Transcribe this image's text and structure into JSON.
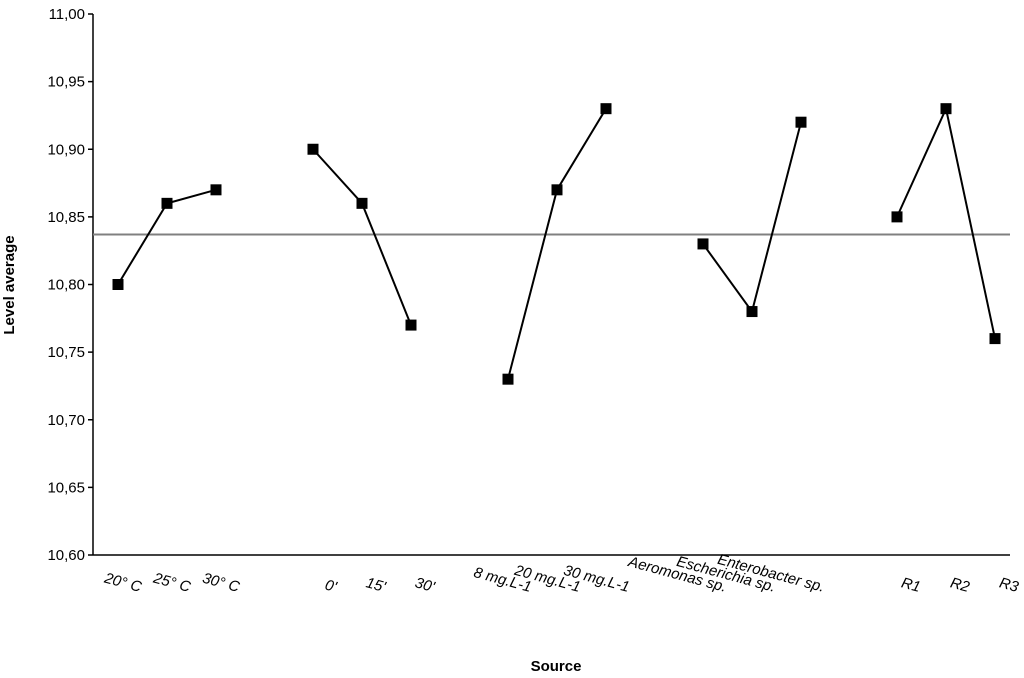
{
  "chart_data": {
    "type": "line",
    "title": "",
    "xlabel": "Source",
    "ylabel": "Level average",
    "ylim": [
      10.6,
      11.0
    ],
    "y_ticks": [
      "10,60",
      "10,65",
      "10,70",
      "10,75",
      "10,80",
      "10,85",
      "10,90",
      "10,95",
      "11,00"
    ],
    "reference_line": 10.837,
    "grid": false,
    "legend": "none",
    "colors": {
      "line": "#000000",
      "marker": "#000000",
      "reference": "#808080"
    },
    "groups": [
      {
        "categories": [
          "20° C",
          "25° C",
          "30° C"
        ],
        "values": [
          10.8,
          10.86,
          10.87
        ]
      },
      {
        "categories": [
          "0'",
          "15'",
          "30'"
        ],
        "values": [
          10.9,
          10.86,
          10.77
        ]
      },
      {
        "categories": [
          "8 mg.L-1",
          "20 mg.L-1",
          "30 mg.L-1"
        ],
        "values": [
          10.73,
          10.87,
          10.93
        ]
      },
      {
        "categories": [
          "Aeromonas sp.",
          "Escherichia sp.",
          "Enterobacter sp."
        ],
        "values": [
          10.83,
          10.78,
          10.92
        ]
      },
      {
        "categories": [
          "R1",
          "R2",
          "R3"
        ],
        "values": [
          10.85,
          10.93,
          10.76
        ]
      }
    ]
  }
}
